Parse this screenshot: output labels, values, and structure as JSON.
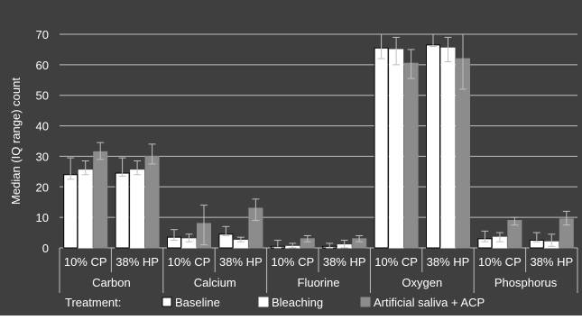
{
  "chart_data": {
    "type": "bar",
    "ylabel": "Median (IQ range) count",
    "ylim": [
      0,
      70
    ],
    "yticks": [
      0,
      10,
      20,
      30,
      40,
      50,
      60,
      70
    ],
    "grid": true,
    "legend_position": "bottom",
    "colors": {
      "background": "#3f3f3f",
      "axis_text": "#ffffff",
      "gridline": "#bfbfbf",
      "error_bar": "#bfbfbf"
    },
    "legend_title": "Treatment:",
    "groups": [
      "Carbon",
      "Calcium",
      "Fluorine",
      "Oxygen",
      "Phosphorus"
    ],
    "subgroups": [
      "10% CP",
      "38% HP"
    ],
    "series": [
      {
        "name": "Baseline",
        "color": "#ffffff",
        "edge": "#000000",
        "values": [
          24,
          24.5,
          3.5,
          4.5,
          0.5,
          0.5,
          65.5,
          66.5,
          3,
          2.5
        ],
        "err_low": [
          22.5,
          23.5,
          2.5,
          4,
          0,
          0,
          62,
          66,
          2,
          2
        ],
        "err_high": [
          29.5,
          29.5,
          6,
          7,
          2.5,
          1.5,
          70,
          70,
          5.5,
          5
        ]
      },
      {
        "name": "Bleaching",
        "color": "#ffffff",
        "edge": "#ffffff",
        "values": [
          25.5,
          25.5,
          3,
          2.5,
          0.5,
          1,
          65,
          65.5,
          3.5,
          2
        ],
        "err_low": [
          24,
          24,
          2,
          2,
          0,
          0,
          60,
          61,
          2,
          0.5
        ],
        "err_high": [
          28.5,
          28.5,
          4.5,
          3.5,
          1.5,
          2.5,
          69,
          69,
          5,
          4.5
        ]
      },
      {
        "name": "Artificial saliva + ACP",
        "color": "#8c8c8c",
        "edge": "#8c8c8c",
        "values": [
          31.5,
          30,
          8,
          13,
          3,
          3,
          60.5,
          62,
          9,
          9.5
        ],
        "err_low": [
          29,
          27.5,
          1,
          9,
          2,
          2,
          55.5,
          52,
          7.5,
          7.5
        ],
        "err_high": [
          34.5,
          34,
          14,
          16,
          4,
          4,
          65,
          70,
          10,
          12
        ]
      }
    ]
  }
}
